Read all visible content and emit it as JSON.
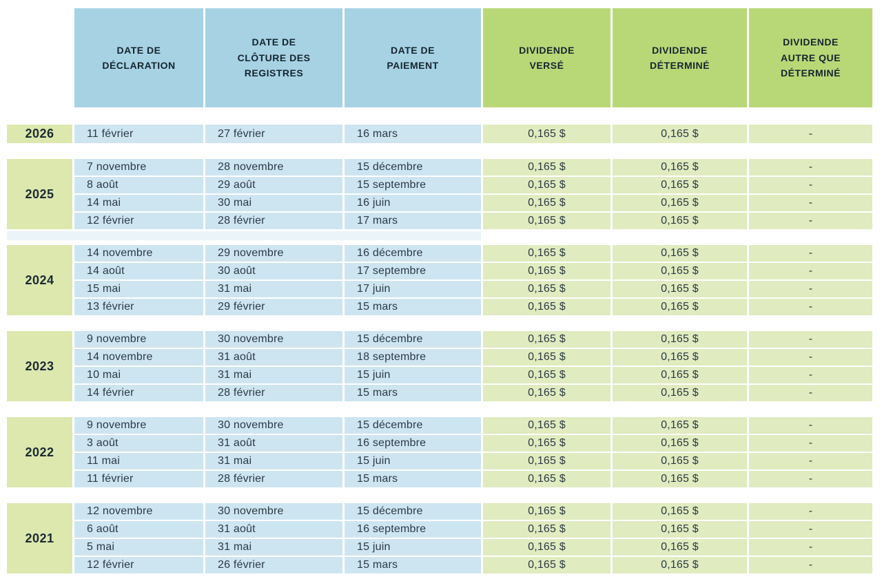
{
  "colors": {
    "header_blue": "#a6d2e4",
    "header_green": "#b8d877",
    "year_green": "#dce8ae",
    "cell_blue": "#cde5f1",
    "cell_green": "#e0ebbf",
    "header_text": "#16252e",
    "body_text": "#2a3a44",
    "background": "#ffffff"
  },
  "chart_data": {
    "type": "table",
    "title": "",
    "legend": "none",
    "columns": [
      {
        "key": "declaration",
        "label": "DATE DE\nDÉCLARATION",
        "header_bg": "blue"
      },
      {
        "key": "cloture",
        "label": "DATE DE\nCLÔTURE DES\nREGISTRES",
        "header_bg": "blue"
      },
      {
        "key": "paiement",
        "label": "DATE DE\nPAIEMENT",
        "header_bg": "blue"
      },
      {
        "key": "verse",
        "label": "DIVIDENDE\nVERSÉ",
        "header_bg": "green"
      },
      {
        "key": "determine",
        "label": "DIVIDENDE\nDÉTERMINÉ",
        "header_bg": "green"
      },
      {
        "key": "autre",
        "label": "DIVIDENDE\nAUTRE QUE\nDÉTERMINÉ",
        "header_bg": "green"
      }
    ],
    "groups": [
      {
        "year": "2026",
        "rows": [
          [
            "11 février",
            "27 février",
            "16 mars",
            "0,165 $",
            "0,165 $",
            "-"
          ]
        ]
      },
      {
        "year": "2025",
        "rows": [
          [
            "7 novembre",
            "28 novembre",
            "15 décembre",
            "0,165 $",
            "0,165 $",
            "-"
          ],
          [
            "8 août",
            "29 août",
            "15 septembre",
            "0,165 $",
            "0,165 $",
            "-"
          ],
          [
            "14 mai",
            "30 mai",
            "16 juin",
            "0,165 $",
            "0,165 $",
            "-"
          ],
          [
            "12 février",
            "28 février",
            "17 mars",
            "0,165 $",
            "0,165 $",
            "-"
          ]
        ]
      },
      {
        "year": "2024",
        "rows": [
          [
            "14 novembre",
            "29 novembre",
            "16 décembre",
            "0,165 $",
            "0,165 $",
            "-"
          ],
          [
            "14 août",
            "30 août",
            "17 septembre",
            "0,165 $",
            "0,165 $",
            "-"
          ],
          [
            "15 mai",
            "31 mai",
            "17 juin",
            "0,165 $",
            "0,165 $",
            "-"
          ],
          [
            "13 février",
            "29 février",
            "15 mars",
            "0,165 $",
            "0,165 $",
            "-"
          ]
        ]
      },
      {
        "year": "2023",
        "rows": [
          [
            "9 novembre",
            "30 novembre",
            "15 décembre",
            "0,165 $",
            "0,165 $",
            "-"
          ],
          [
            "14 novembre",
            "31 août",
            "18 septembre",
            "0,165 $",
            "0,165 $",
            "-"
          ],
          [
            "10 mai",
            "31 mai",
            "15 juin",
            "0,165 $",
            "0,165 $",
            "-"
          ],
          [
            "14 février",
            "28 février",
            "15 mars",
            "0,165 $",
            "0,165 $",
            "-"
          ]
        ]
      },
      {
        "year": "2022",
        "rows": [
          [
            "9 novembre",
            "30 novembre",
            "15 décembre",
            "0,165 $",
            "0,165 $",
            "-"
          ],
          [
            "3 août",
            "31 août",
            "16 septembre",
            "0,165 $",
            "0,165 $",
            "-"
          ],
          [
            "11 mai",
            "31 mai",
            "15 juin",
            "0,165 $",
            "0,165 $",
            "-"
          ],
          [
            "11 février",
            "28 février",
            "15 mars",
            "0,165 $",
            "0,165 $",
            "-"
          ]
        ]
      },
      {
        "year": "2021",
        "rows": [
          [
            "12 novembre",
            "30 novembre",
            "15 décembre",
            "0,165 $",
            "0,165 $",
            "-"
          ],
          [
            "6 août",
            "31 août",
            "16 septembre",
            "0,165 $",
            "0,165 $",
            "-"
          ],
          [
            "5 mai",
            "31 mai",
            "15 juin",
            "0,165 $",
            "0,165 $",
            "-"
          ],
          [
            "12 février",
            "26 février",
            "15 mars",
            "0,165 $",
            "0,165 $",
            "-"
          ]
        ]
      }
    ]
  }
}
